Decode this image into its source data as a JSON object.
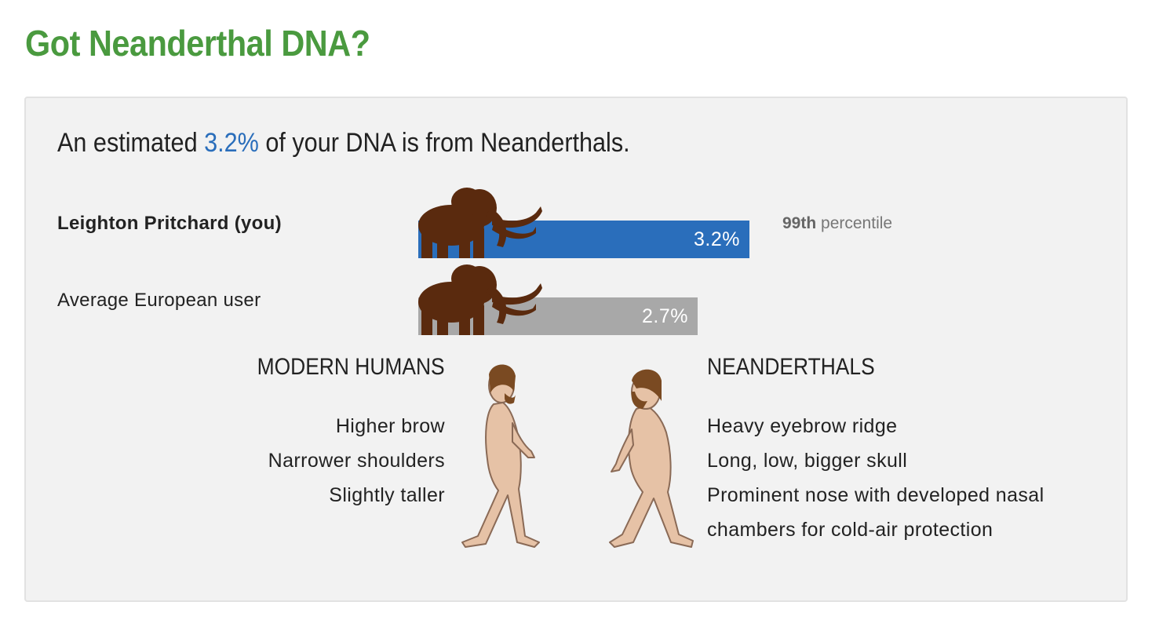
{
  "page": {
    "title": "Got Neanderthal DNA?"
  },
  "colors": {
    "title_green": "#4a9a3f",
    "accent_blue": "#2a6ebb",
    "bar_you": "#2a6ebb",
    "bar_average": "#a8a8a8",
    "mammoth_brown": "#5a2a0e"
  },
  "summary": {
    "prefix": "An estimated ",
    "value": "3.2%",
    "suffix": " of your DNA is from Neanderthals."
  },
  "comparison": {
    "rows": [
      {
        "label": "Leighton Pritchard (you)",
        "value_label": "3.2%",
        "percent": 3.2,
        "icon": "mammoth-icon"
      },
      {
        "label": "Average European user",
        "value_label": "2.7%",
        "percent": 2.7,
        "icon": "mammoth-icon"
      }
    ],
    "percentile_rank": "99th",
    "percentile_word": " percentile"
  },
  "modern_humans": {
    "heading": "MODERN HUMANS",
    "traits": [
      "Higher brow",
      "Narrower shoulders",
      "Slightly taller"
    ],
    "icon": "modern-human-icon"
  },
  "neanderthals": {
    "heading": "NEANDERTHALS",
    "traits": [
      "Heavy eyebrow ridge",
      "Long, low, bigger skull",
      "Prominent nose with developed nasal",
      "chambers for cold-air protection"
    ],
    "icon": "neanderthal-icon"
  }
}
